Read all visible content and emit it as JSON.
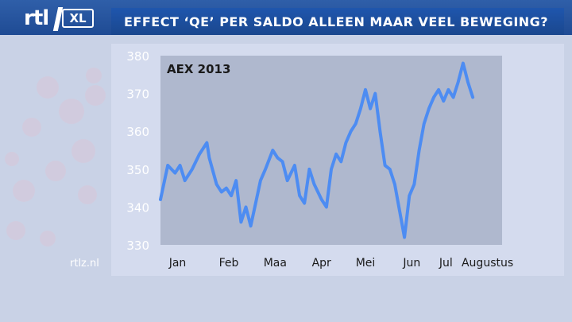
{
  "header": {
    "logo_text": "rtl",
    "logo_badge": "XL",
    "title": "EFFECT ‘QE’ PER SALDO ALLEEN MAAR VEEL BEWEGING?"
  },
  "footer": {
    "source": "rtlz.nl"
  },
  "colors": {
    "line": "#4d8cf2",
    "header": "#1f4b94",
    "plot_bg": "#afb8ce",
    "panel_bg": "#d6ddef"
  },
  "chart_data": {
    "type": "line",
    "title": "AEX 2013",
    "xlabel": "",
    "ylabel": "",
    "x_ticks": [
      "Jan",
      "Feb",
      "Maa",
      "Apr",
      "Mei",
      "Jun",
      "Jul",
      "Augustus"
    ],
    "ylim": [
      330,
      380
    ],
    "y_ticks": [
      330,
      340,
      350,
      360,
      370,
      380
    ],
    "grid": false,
    "series": [
      {
        "points": [
          [
            0.0,
            342
          ],
          [
            0.03,
            351
          ],
          [
            0.06,
            349
          ],
          [
            0.08,
            351
          ],
          [
            0.1,
            347
          ],
          [
            0.13,
            350
          ],
          [
            0.16,
            354
          ],
          [
            0.19,
            357
          ],
          [
            0.2,
            353
          ],
          [
            0.23,
            346
          ],
          [
            0.25,
            344
          ],
          [
            0.27,
            345
          ],
          [
            0.29,
            343
          ],
          [
            0.31,
            347
          ],
          [
            0.33,
            336
          ],
          [
            0.35,
            340
          ],
          [
            0.37,
            335
          ],
          [
            0.39,
            341
          ],
          [
            0.41,
            347
          ],
          [
            0.43,
            350
          ],
          [
            0.46,
            355
          ],
          [
            0.48,
            353
          ],
          [
            0.5,
            352
          ],
          [
            0.52,
            347
          ],
          [
            0.55,
            351
          ],
          [
            0.57,
            343
          ],
          [
            0.59,
            341
          ],
          [
            0.61,
            350
          ],
          [
            0.63,
            346
          ],
          [
            0.66,
            342
          ],
          [
            0.68,
            340
          ],
          [
            0.7,
            350
          ],
          [
            0.72,
            354
          ],
          [
            0.74,
            352
          ],
          [
            0.76,
            357
          ],
          [
            0.78,
            360
          ],
          [
            0.8,
            362
          ],
          [
            0.82,
            366
          ],
          [
            0.84,
            371
          ],
          [
            0.86,
            366
          ],
          [
            0.88,
            370
          ],
          [
            0.9,
            360
          ],
          [
            0.92,
            351
          ],
          [
            0.94,
            350
          ],
          [
            0.96,
            346
          ],
          [
            0.98,
            339
          ],
          [
            1.0,
            332
          ],
          [
            1.02,
            343
          ],
          [
            1.04,
            346
          ],
          [
            1.06,
            355
          ],
          [
            1.08,
            362
          ],
          [
            1.1,
            366
          ],
          [
            1.12,
            369
          ],
          [
            1.14,
            371
          ],
          [
            1.16,
            368
          ],
          [
            1.18,
            371
          ],
          [
            1.2,
            369
          ],
          [
            1.22,
            373
          ],
          [
            1.24,
            378
          ],
          [
            1.26,
            373
          ],
          [
            1.28,
            369
          ]
        ]
      }
    ]
  }
}
